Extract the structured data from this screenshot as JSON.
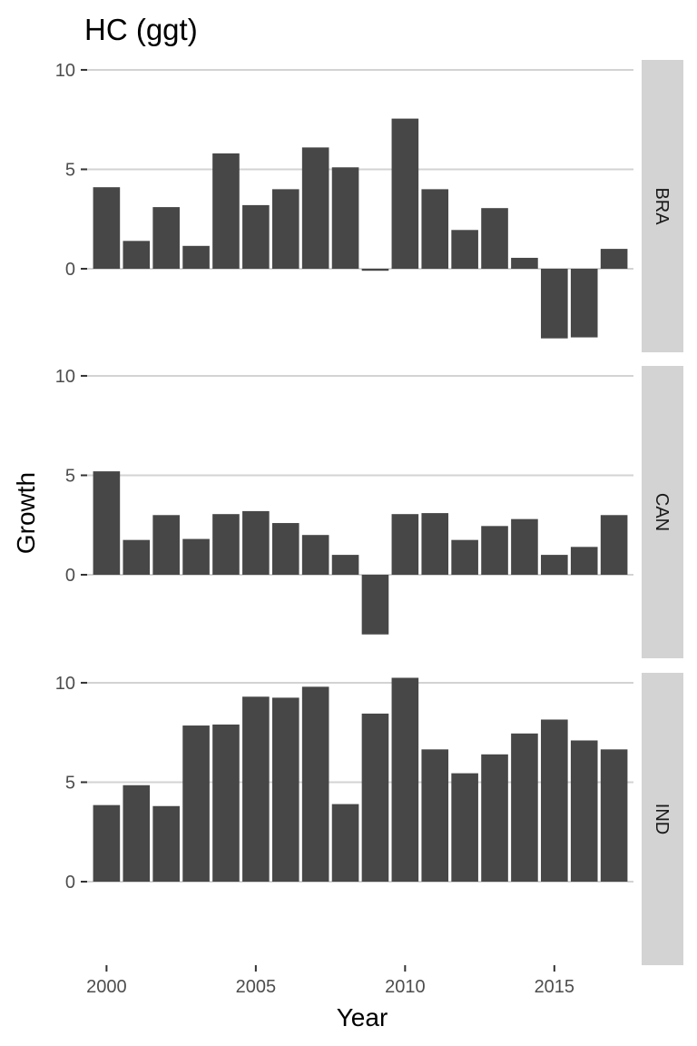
{
  "chart_data": {
    "type": "bar",
    "title": "HC (ggt)",
    "xlabel": "Year",
    "ylabel": "Growth",
    "x": [
      2000,
      2001,
      2002,
      2003,
      2004,
      2005,
      2006,
      2007,
      2008,
      2009,
      2010,
      2011,
      2012,
      2013,
      2014,
      2015,
      2016,
      2017
    ],
    "x_ticks": [
      2000,
      2005,
      2010,
      2015
    ],
    "y_ticks": [
      0,
      5,
      10
    ],
    "ylim": [
      -4.2,
      10.5
    ],
    "grid": true,
    "facet_direction": "rows",
    "bar_color": "#474747",
    "panel_background": "#ffffff",
    "grid_color": "#d3d3d3",
    "strip_background": "#d3d3d3",
    "series": [
      {
        "name": "BRA",
        "values": [
          4.1,
          1.4,
          3.1,
          1.15,
          5.8,
          3.2,
          4.0,
          6.1,
          5.1,
          -0.1,
          7.55,
          4.0,
          1.95,
          3.05,
          0.55,
          -3.5,
          -3.45,
          1.0
        ]
      },
      {
        "name": "CAN",
        "values": [
          5.2,
          1.75,
          3.0,
          1.8,
          3.05,
          3.2,
          2.6,
          2.0,
          1.0,
          -3.0,
          3.05,
          3.1,
          1.75,
          2.45,
          2.8,
          1.0,
          1.4,
          3.0
        ]
      },
      {
        "name": "IND",
        "values": [
          3.85,
          4.85,
          3.8,
          7.85,
          7.9,
          9.3,
          9.25,
          9.8,
          3.9,
          8.45,
          10.25,
          6.65,
          5.45,
          6.4,
          7.45,
          8.15,
          7.1,
          6.65
        ]
      }
    ]
  }
}
